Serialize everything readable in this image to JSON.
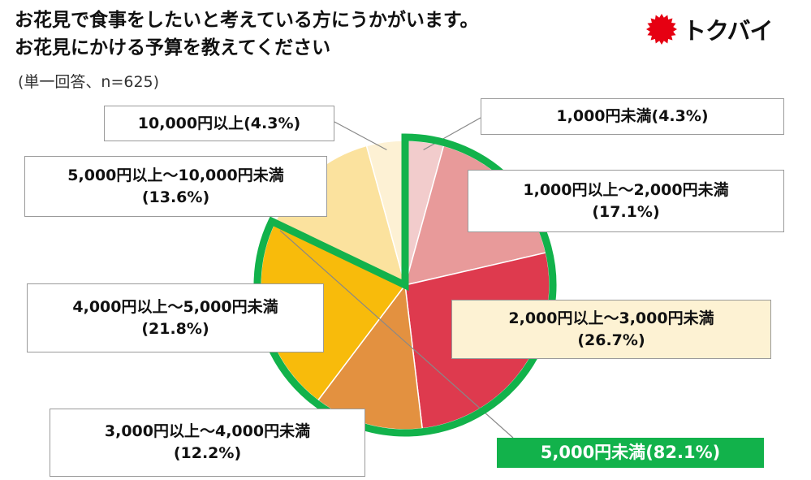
{
  "title_lines": [
    "お花見で食事をしたいと考えている方にうかがいます。",
    "お花見にかける予算を教えてください"
  ],
  "subtitle": "(単一回答、n=625)",
  "brand": {
    "name": "トクバイ",
    "color": "#e60012"
  },
  "colors": {
    "highlight_ring": "#12b24b",
    "highlight_box": "#fdf2d3"
  },
  "chart_data": {
    "type": "pie",
    "n": 625,
    "slices": [
      {
        "label": "1,000円未満",
        "pct": "(4.3%)",
        "value": 4.3,
        "color": "#f2cccc"
      },
      {
        "label": "1,000円以上～2,000円未満",
        "pct": "(17.1%)",
        "value": 17.1,
        "color": "#e89a9a"
      },
      {
        "label": "2,000円以上～3,000円未満",
        "pct": "(26.7%)",
        "value": 26.7,
        "color": "#de3a4e"
      },
      {
        "label": "3,000円以上～4,000円未満",
        "pct": "(12.2%)",
        "value": 12.2,
        "color": "#e39140"
      },
      {
        "label": "4,000円以上～5,000円未満",
        "pct": "(21.8%)",
        "value": 21.8,
        "color": "#f8bb0b"
      },
      {
        "label": "5,000円以上～10,000円未満",
        "pct": "(13.6%)",
        "value": 13.6,
        "color": "#fbe29e"
      },
      {
        "label": "10,000円以上",
        "pct": "(4.3%)",
        "value": 4.3,
        "color": "#fdf1d4"
      }
    ],
    "highlight": {
      "label": "5,000円未満",
      "pct": "(82.1%)",
      "value": 82.1
    }
  }
}
